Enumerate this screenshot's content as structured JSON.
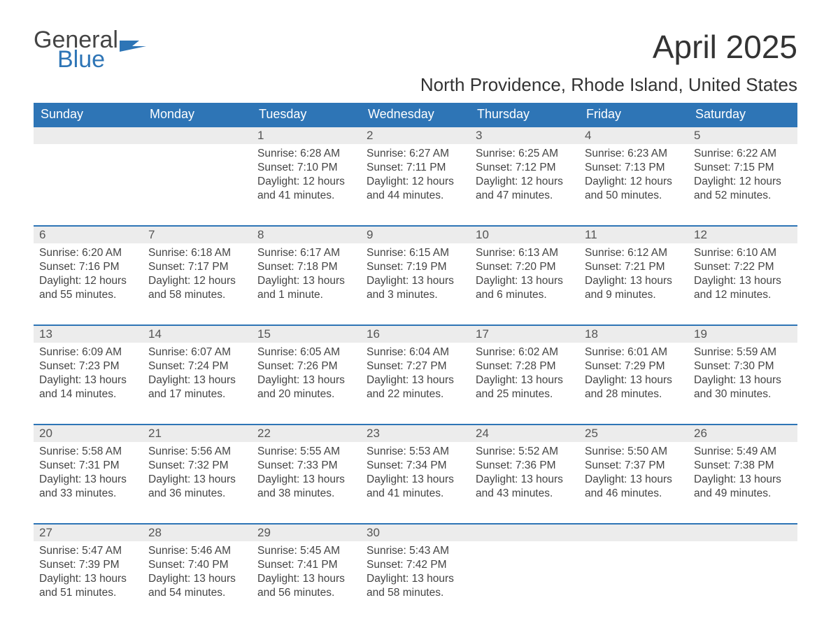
{
  "brand": {
    "word1": "General",
    "word2": "Blue",
    "color_general": "#444444",
    "color_blue": "#2e75b6"
  },
  "title": "April 2025",
  "location": "North Providence, Rhode Island, United States",
  "colors": {
    "header_bg": "#2e75b6",
    "header_text": "#ffffff",
    "daynum_bg": "#ececec",
    "row_divider": "#2e75b6",
    "body_text": "#444444",
    "page_bg": "#ffffff"
  },
  "layout": {
    "columns": 7,
    "rows": 5,
    "col_width_pct": 14.28
  },
  "week_header": [
    "Sunday",
    "Monday",
    "Tuesday",
    "Wednesday",
    "Thursday",
    "Friday",
    "Saturday"
  ],
  "labels": {
    "sunrise": "Sunrise: ",
    "sunset": "Sunset: ",
    "daylight": "Daylight: "
  },
  "weeks": [
    [
      null,
      null,
      {
        "n": 1,
        "sunrise": "6:28 AM",
        "sunset": "7:10 PM",
        "daylight": "12 hours and 41 minutes."
      },
      {
        "n": 2,
        "sunrise": "6:27 AM",
        "sunset": "7:11 PM",
        "daylight": "12 hours and 44 minutes."
      },
      {
        "n": 3,
        "sunrise": "6:25 AM",
        "sunset": "7:12 PM",
        "daylight": "12 hours and 47 minutes."
      },
      {
        "n": 4,
        "sunrise": "6:23 AM",
        "sunset": "7:13 PM",
        "daylight": "12 hours and 50 minutes."
      },
      {
        "n": 5,
        "sunrise": "6:22 AM",
        "sunset": "7:15 PM",
        "daylight": "12 hours and 52 minutes."
      }
    ],
    [
      {
        "n": 6,
        "sunrise": "6:20 AM",
        "sunset": "7:16 PM",
        "daylight": "12 hours and 55 minutes."
      },
      {
        "n": 7,
        "sunrise": "6:18 AM",
        "sunset": "7:17 PM",
        "daylight": "12 hours and 58 minutes."
      },
      {
        "n": 8,
        "sunrise": "6:17 AM",
        "sunset": "7:18 PM",
        "daylight": "13 hours and 1 minute."
      },
      {
        "n": 9,
        "sunrise": "6:15 AM",
        "sunset": "7:19 PM",
        "daylight": "13 hours and 3 minutes."
      },
      {
        "n": 10,
        "sunrise": "6:13 AM",
        "sunset": "7:20 PM",
        "daylight": "13 hours and 6 minutes."
      },
      {
        "n": 11,
        "sunrise": "6:12 AM",
        "sunset": "7:21 PM",
        "daylight": "13 hours and 9 minutes."
      },
      {
        "n": 12,
        "sunrise": "6:10 AM",
        "sunset": "7:22 PM",
        "daylight": "13 hours and 12 minutes."
      }
    ],
    [
      {
        "n": 13,
        "sunrise": "6:09 AM",
        "sunset": "7:23 PM",
        "daylight": "13 hours and 14 minutes."
      },
      {
        "n": 14,
        "sunrise": "6:07 AM",
        "sunset": "7:24 PM",
        "daylight": "13 hours and 17 minutes."
      },
      {
        "n": 15,
        "sunrise": "6:05 AM",
        "sunset": "7:26 PM",
        "daylight": "13 hours and 20 minutes."
      },
      {
        "n": 16,
        "sunrise": "6:04 AM",
        "sunset": "7:27 PM",
        "daylight": "13 hours and 22 minutes."
      },
      {
        "n": 17,
        "sunrise": "6:02 AM",
        "sunset": "7:28 PM",
        "daylight": "13 hours and 25 minutes."
      },
      {
        "n": 18,
        "sunrise": "6:01 AM",
        "sunset": "7:29 PM",
        "daylight": "13 hours and 28 minutes."
      },
      {
        "n": 19,
        "sunrise": "5:59 AM",
        "sunset": "7:30 PM",
        "daylight": "13 hours and 30 minutes."
      }
    ],
    [
      {
        "n": 20,
        "sunrise": "5:58 AM",
        "sunset": "7:31 PM",
        "daylight": "13 hours and 33 minutes."
      },
      {
        "n": 21,
        "sunrise": "5:56 AM",
        "sunset": "7:32 PM",
        "daylight": "13 hours and 36 minutes."
      },
      {
        "n": 22,
        "sunrise": "5:55 AM",
        "sunset": "7:33 PM",
        "daylight": "13 hours and 38 minutes."
      },
      {
        "n": 23,
        "sunrise": "5:53 AM",
        "sunset": "7:34 PM",
        "daylight": "13 hours and 41 minutes."
      },
      {
        "n": 24,
        "sunrise": "5:52 AM",
        "sunset": "7:36 PM",
        "daylight": "13 hours and 43 minutes."
      },
      {
        "n": 25,
        "sunrise": "5:50 AM",
        "sunset": "7:37 PM",
        "daylight": "13 hours and 46 minutes."
      },
      {
        "n": 26,
        "sunrise": "5:49 AM",
        "sunset": "7:38 PM",
        "daylight": "13 hours and 49 minutes."
      }
    ],
    [
      {
        "n": 27,
        "sunrise": "5:47 AM",
        "sunset": "7:39 PM",
        "daylight": "13 hours and 51 minutes."
      },
      {
        "n": 28,
        "sunrise": "5:46 AM",
        "sunset": "7:40 PM",
        "daylight": "13 hours and 54 minutes."
      },
      {
        "n": 29,
        "sunrise": "5:45 AM",
        "sunset": "7:41 PM",
        "daylight": "13 hours and 56 minutes."
      },
      {
        "n": 30,
        "sunrise": "5:43 AM",
        "sunset": "7:42 PM",
        "daylight": "13 hours and 58 minutes."
      },
      null,
      null,
      null
    ]
  ]
}
